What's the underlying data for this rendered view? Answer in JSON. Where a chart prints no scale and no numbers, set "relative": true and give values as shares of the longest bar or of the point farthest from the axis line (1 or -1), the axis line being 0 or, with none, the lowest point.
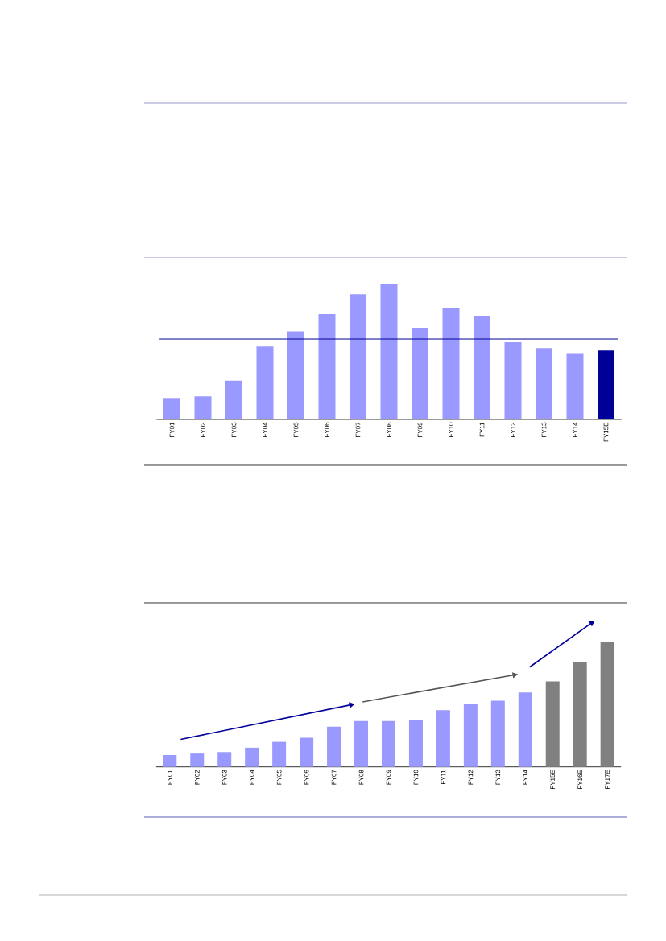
{
  "chart_data": [
    {
      "type": "bar",
      "relative": true,
      "categories": [
        "FY01",
        "FY02",
        "FY03",
        "FY04",
        "FY05",
        "FY06",
        "FY07",
        "FY08",
        "FY09",
        "FY10",
        "FY11",
        "FY12",
        "FY13",
        "FY14",
        "FY15E"
      ],
      "values": [
        0.153,
        0.171,
        0.287,
        0.54,
        0.651,
        0.779,
        0.927,
        1,
        0.679,
        0.822,
        0.768,
        0.572,
        0.528,
        0.485,
        0.51
      ],
      "colors": [
        "#9999ff",
        "#9999ff",
        "#9999ff",
        "#9999ff",
        "#9999ff",
        "#9999ff",
        "#9999ff",
        "#9999ff",
        "#9999ff",
        "#9999ff",
        "#9999ff",
        "#9999ff",
        "#9999ff",
        "#9999ff",
        "#000099"
      ],
      "ref_lines": [
        {
          "axis": "y",
          "value": 0.595,
          "color": "#000099"
        }
      ]
    },
    {
      "type": "bar",
      "relative": true,
      "categories": [
        "FY01",
        "FY02",
        "FY03",
        "FY04",
        "FY05",
        "FY06",
        "FY07",
        "FY08",
        "FY09",
        "FY10",
        "FY11",
        "FY12",
        "FY13",
        "FY14",
        "FY15E",
        "FY16E",
        "FY17E"
      ],
      "values": [
        0.095,
        0.107,
        0.119,
        0.154,
        0.201,
        0.234,
        0.323,
        0.368,
        0.368,
        0.376,
        0.455,
        0.505,
        0.532,
        0.597,
        0.687,
        0.841,
        1
      ],
      "colors": [
        "#9999ff",
        "#9999ff",
        "#9999ff",
        "#9999ff",
        "#9999ff",
        "#9999ff",
        "#9999ff",
        "#9999ff",
        "#9999ff",
        "#9999ff",
        "#9999ff",
        "#9999ff",
        "#9999ff",
        "#9999ff",
        "#808080",
        "#808080",
        "#808080"
      ]
    }
  ]
}
